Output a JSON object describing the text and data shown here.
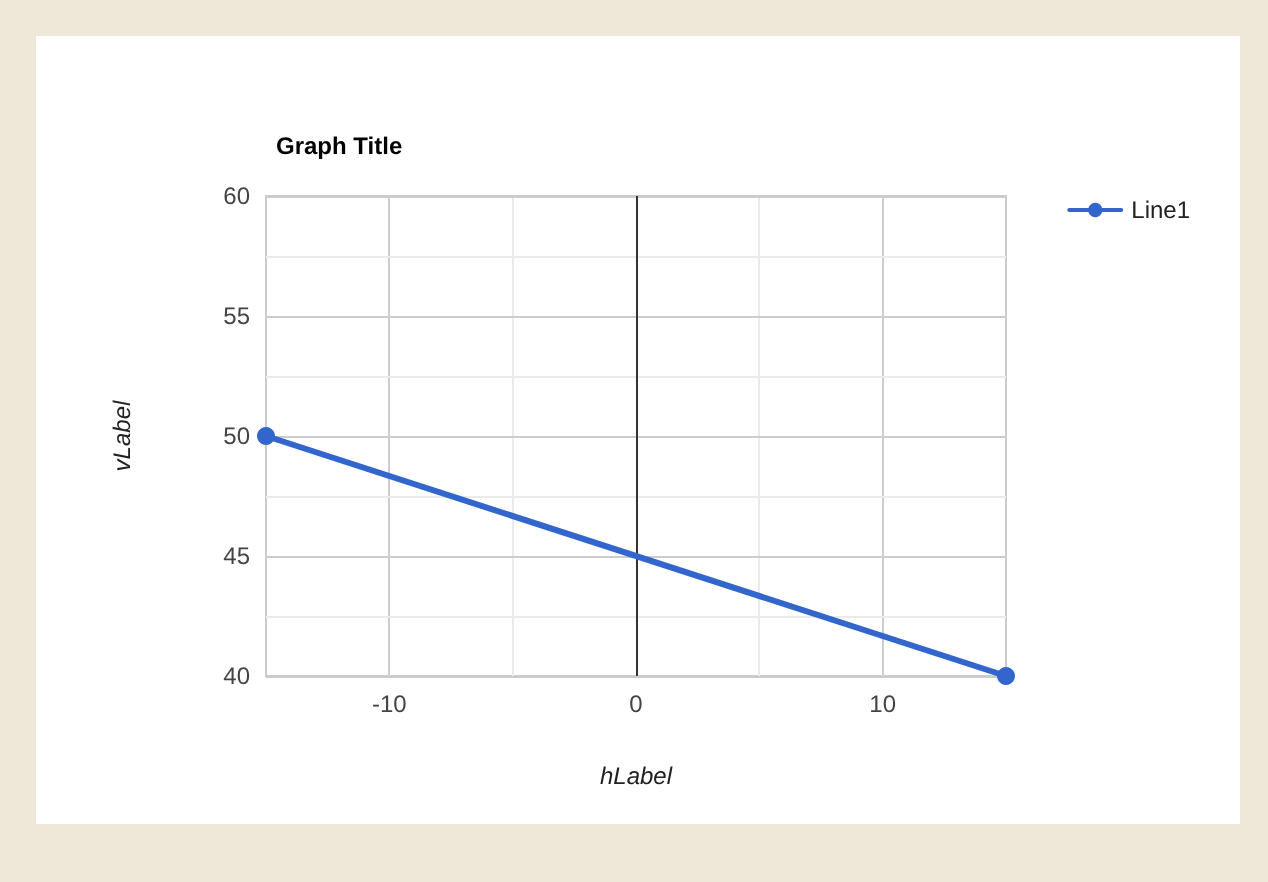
{
  "chart_data": {
    "type": "line",
    "title": "Graph Title",
    "xlabel": "hLabel",
    "ylabel": "vLabel",
    "x": [
      -15,
      15
    ],
    "series": [
      {
        "name": "Line1",
        "color": "#3366cc",
        "values": [
          50,
          40
        ]
      }
    ],
    "xlim": [
      -15,
      15
    ],
    "xticks": [
      -10,
      {
        "value": -5,
        "label": null
      },
      0,
      {
        "value": 5,
        "label": null
      },
      10
    ],
    "ylim": [
      40,
      60
    ],
    "yticks": [
      40,
      {
        "value": 42.5,
        "label": null
      },
      45,
      {
        "value": 47.5,
        "label": null
      },
      50,
      {
        "value": 52.5,
        "label": null
      },
      55,
      {
        "value": 57.5,
        "label": null
      },
      60
    ],
    "ref_lines": [
      {
        "axis": "x",
        "value": 0,
        "color": "#333333"
      }
    ],
    "grid": true,
    "legend": "top right",
    "marker": "circle",
    "line_style": "solid"
  }
}
